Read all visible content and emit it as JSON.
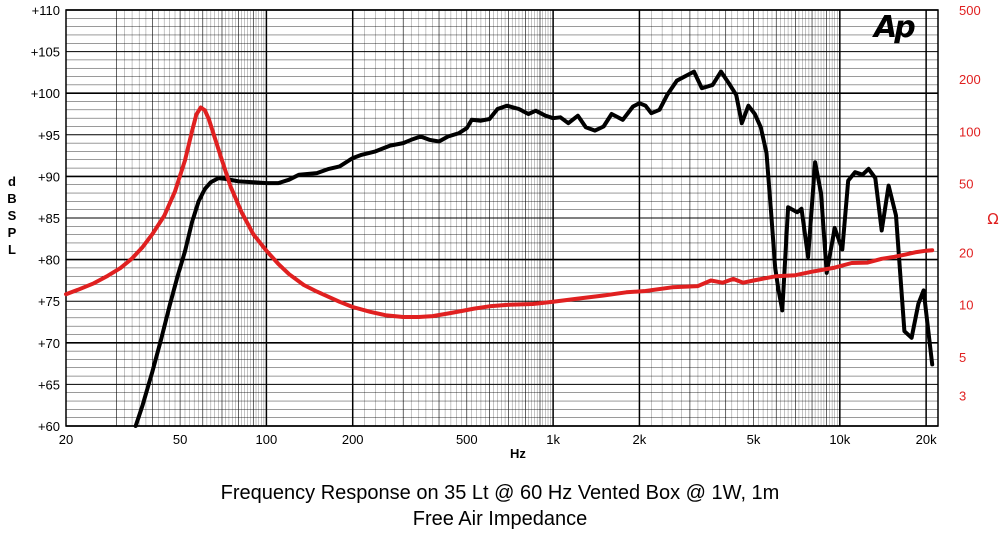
{
  "logo_text": "Ap",
  "captions": {
    "line1": "Frequency Response on 35 Lt @ 60 Hz Vented Box @ 1W, 1m",
    "line2": "Free Air Impedance"
  },
  "colors": {
    "spl": "#000000",
    "impedance": "#e02020",
    "grid": "#000000"
  },
  "chart_data": {
    "type": "line",
    "title": "",
    "xlabel": "Hz",
    "ylabel": "dB SPL",
    "y2label": "Ω",
    "x_scale": "log",
    "y2_scale": "log",
    "xlim": [
      20,
      22000
    ],
    "ylim": [
      60,
      110
    ],
    "y2lim": [
      2,
      500
    ],
    "grid": true,
    "x_ticks": [
      {
        "value": 20,
        "label": "20"
      },
      {
        "value": 50,
        "label": "50"
      },
      {
        "value": 100,
        "label": "100"
      },
      {
        "value": 200,
        "label": "200"
      },
      {
        "value": 500,
        "label": "500"
      },
      {
        "value": 1000,
        "label": "1k"
      },
      {
        "value": 2000,
        "label": "2k"
      },
      {
        "value": 5000,
        "label": "5k"
      },
      {
        "value": 10000,
        "label": "10k"
      },
      {
        "value": 20000,
        "label": "20k"
      }
    ],
    "y_ticks": [
      {
        "value": 110,
        "label": "+110"
      },
      {
        "value": 105,
        "label": "+105"
      },
      {
        "value": 100,
        "label": "+100"
      },
      {
        "value": 95,
        "label": "+95"
      },
      {
        "value": 90,
        "label": "+90"
      },
      {
        "value": 85,
        "label": "+85"
      },
      {
        "value": 80,
        "label": "+80"
      },
      {
        "value": 75,
        "label": "+75"
      },
      {
        "value": 70,
        "label": "+70"
      },
      {
        "value": 65,
        "label": "+65"
      },
      {
        "value": 60,
        "label": "+60"
      }
    ],
    "y2_ticks": [
      {
        "value": 500,
        "label": "500"
      },
      {
        "value": 200,
        "label": "200"
      },
      {
        "value": 100,
        "label": "100"
      },
      {
        "value": 50,
        "label": "50"
      },
      {
        "value": 20,
        "label": "20"
      },
      {
        "value": 10,
        "label": "10"
      },
      {
        "value": 5,
        "label": "5"
      },
      {
        "value": 3,
        "label": "3"
      }
    ],
    "series": [
      {
        "name": "SPL",
        "axis": "left",
        "points": [
          [
            35,
            60
          ],
          [
            37,
            62.5
          ],
          [
            40,
            66.5
          ],
          [
            43,
            70.5
          ],
          [
            46,
            74.5
          ],
          [
            49,
            78
          ],
          [
            52,
            81
          ],
          [
            55,
            84.5
          ],
          [
            58,
            87
          ],
          [
            61,
            88.5
          ],
          [
            64,
            89.3
          ],
          [
            68,
            89.8
          ],
          [
            72,
            89.7
          ],
          [
            80,
            89.4
          ],
          [
            90,
            89.3
          ],
          [
            100,
            89.2
          ],
          [
            110,
            89.2
          ],
          [
            120,
            89.6
          ],
          [
            130,
            90.2
          ],
          [
            150,
            90.4
          ],
          [
            165,
            90.9
          ],
          [
            180,
            91.2
          ],
          [
            200,
            92.2
          ],
          [
            215,
            92.6
          ],
          [
            240,
            93.0
          ],
          [
            270,
            93.7
          ],
          [
            300,
            94.0
          ],
          [
            320,
            94.4
          ],
          [
            345,
            94.8
          ],
          [
            370,
            94.4
          ],
          [
            400,
            94.2
          ],
          [
            430,
            94.8
          ],
          [
            470,
            95.2
          ],
          [
            500,
            95.8
          ],
          [
            520,
            96.8
          ],
          [
            560,
            96.7
          ],
          [
            600,
            96.9
          ],
          [
            640,
            98.1
          ],
          [
            690,
            98.5
          ],
          [
            760,
            98.1
          ],
          [
            820,
            97.5
          ],
          [
            870,
            97.9
          ],
          [
            940,
            97.3
          ],
          [
            1000,
            97.0
          ],
          [
            1060,
            97.1
          ],
          [
            1130,
            96.4
          ],
          [
            1220,
            97.3
          ],
          [
            1300,
            95.9
          ],
          [
            1400,
            95.5
          ],
          [
            1500,
            96.0
          ],
          [
            1600,
            97.5
          ],
          [
            1750,
            96.8
          ],
          [
            1900,
            98.4
          ],
          [
            2000,
            98.8
          ],
          [
            2100,
            98.5
          ],
          [
            2200,
            97.6
          ],
          [
            2350,
            98.0
          ],
          [
            2500,
            99.8
          ],
          [
            2700,
            101.5
          ],
          [
            2950,
            102.2
          ],
          [
            3100,
            102.6
          ],
          [
            3300,
            100.6
          ],
          [
            3600,
            101.0
          ],
          [
            3850,
            102.6
          ],
          [
            4100,
            101.2
          ],
          [
            4350,
            99.8
          ],
          [
            4550,
            96.4
          ],
          [
            4800,
            98.5
          ],
          [
            5050,
            97.5
          ],
          [
            5300,
            95.9
          ],
          [
            5550,
            92.8
          ],
          [
            5750,
            86.0
          ],
          [
            5950,
            79.0
          ],
          [
            6100,
            76.5
          ],
          [
            6300,
            73.9
          ],
          [
            6600,
            86.3
          ],
          [
            7100,
            85.7
          ],
          [
            7350,
            86.1
          ],
          [
            7750,
            80.3
          ],
          [
            8200,
            91.7
          ],
          [
            8600,
            88.0
          ],
          [
            9000,
            78.4
          ],
          [
            9600,
            83.8
          ],
          [
            10200,
            81.2
          ],
          [
            10700,
            89.5
          ],
          [
            11300,
            90.5
          ],
          [
            12000,
            90.2
          ],
          [
            12600,
            90.9
          ],
          [
            13300,
            89.8
          ],
          [
            14000,
            83.5
          ],
          [
            14800,
            88.9
          ],
          [
            15700,
            85.3
          ],
          [
            16800,
            71.4
          ],
          [
            17800,
            70.6
          ],
          [
            18800,
            74.7
          ],
          [
            19600,
            76.3
          ],
          [
            21000,
            67.4
          ]
        ]
      },
      {
        "name": "Impedance",
        "axis": "right",
        "points": [
          [
            20,
            11.5
          ],
          [
            22,
            12.2
          ],
          [
            25,
            13.3
          ],
          [
            28,
            14.7
          ],
          [
            31,
            16.3
          ],
          [
            34,
            18.5
          ],
          [
            37,
            21.5
          ],
          [
            40,
            25.5
          ],
          [
            44,
            32.5
          ],
          [
            48,
            45
          ],
          [
            52,
            68
          ],
          [
            55,
            100
          ],
          [
            57,
            125
          ],
          [
            59,
            137
          ],
          [
            61,
            132
          ],
          [
            63,
            117
          ],
          [
            66,
            92
          ],
          [
            70,
            68
          ],
          [
            75,
            48
          ],
          [
            82,
            34
          ],
          [
            90,
            25.5
          ],
          [
            100,
            20.5
          ],
          [
            110,
            17.2
          ],
          [
            120,
            15.0
          ],
          [
            135,
            13.0
          ],
          [
            150,
            11.9
          ],
          [
            165,
            11.1
          ],
          [
            180,
            10.4
          ],
          [
            200,
            9.7
          ],
          [
            230,
            9.1
          ],
          [
            260,
            8.7
          ],
          [
            300,
            8.5
          ],
          [
            340,
            8.5
          ],
          [
            380,
            8.6
          ],
          [
            430,
            8.9
          ],
          [
            480,
            9.2
          ],
          [
            530,
            9.5
          ],
          [
            600,
            9.8
          ],
          [
            700,
            10.0
          ],
          [
            850,
            10.1
          ],
          [
            1000,
            10.4
          ],
          [
            1200,
            10.8
          ],
          [
            1500,
            11.3
          ],
          [
            1800,
            11.8
          ],
          [
            2100,
            12.0
          ],
          [
            2600,
            12.6
          ],
          [
            3200,
            12.8
          ],
          [
            3550,
            13.8
          ],
          [
            3900,
            13.4
          ],
          [
            4250,
            14.1
          ],
          [
            4600,
            13.4
          ],
          [
            5000,
            13.8
          ],
          [
            6000,
            14.6
          ],
          [
            7000,
            14.8
          ],
          [
            8000,
            15.5
          ],
          [
            9500,
            16.3
          ],
          [
            11000,
            17.4
          ],
          [
            12500,
            17.5
          ],
          [
            14000,
            18.4
          ],
          [
            15500,
            18.9
          ],
          [
            17000,
            19.5
          ],
          [
            18500,
            20.1
          ],
          [
            20000,
            20.5
          ],
          [
            21000,
            20.6
          ]
        ]
      }
    ]
  }
}
